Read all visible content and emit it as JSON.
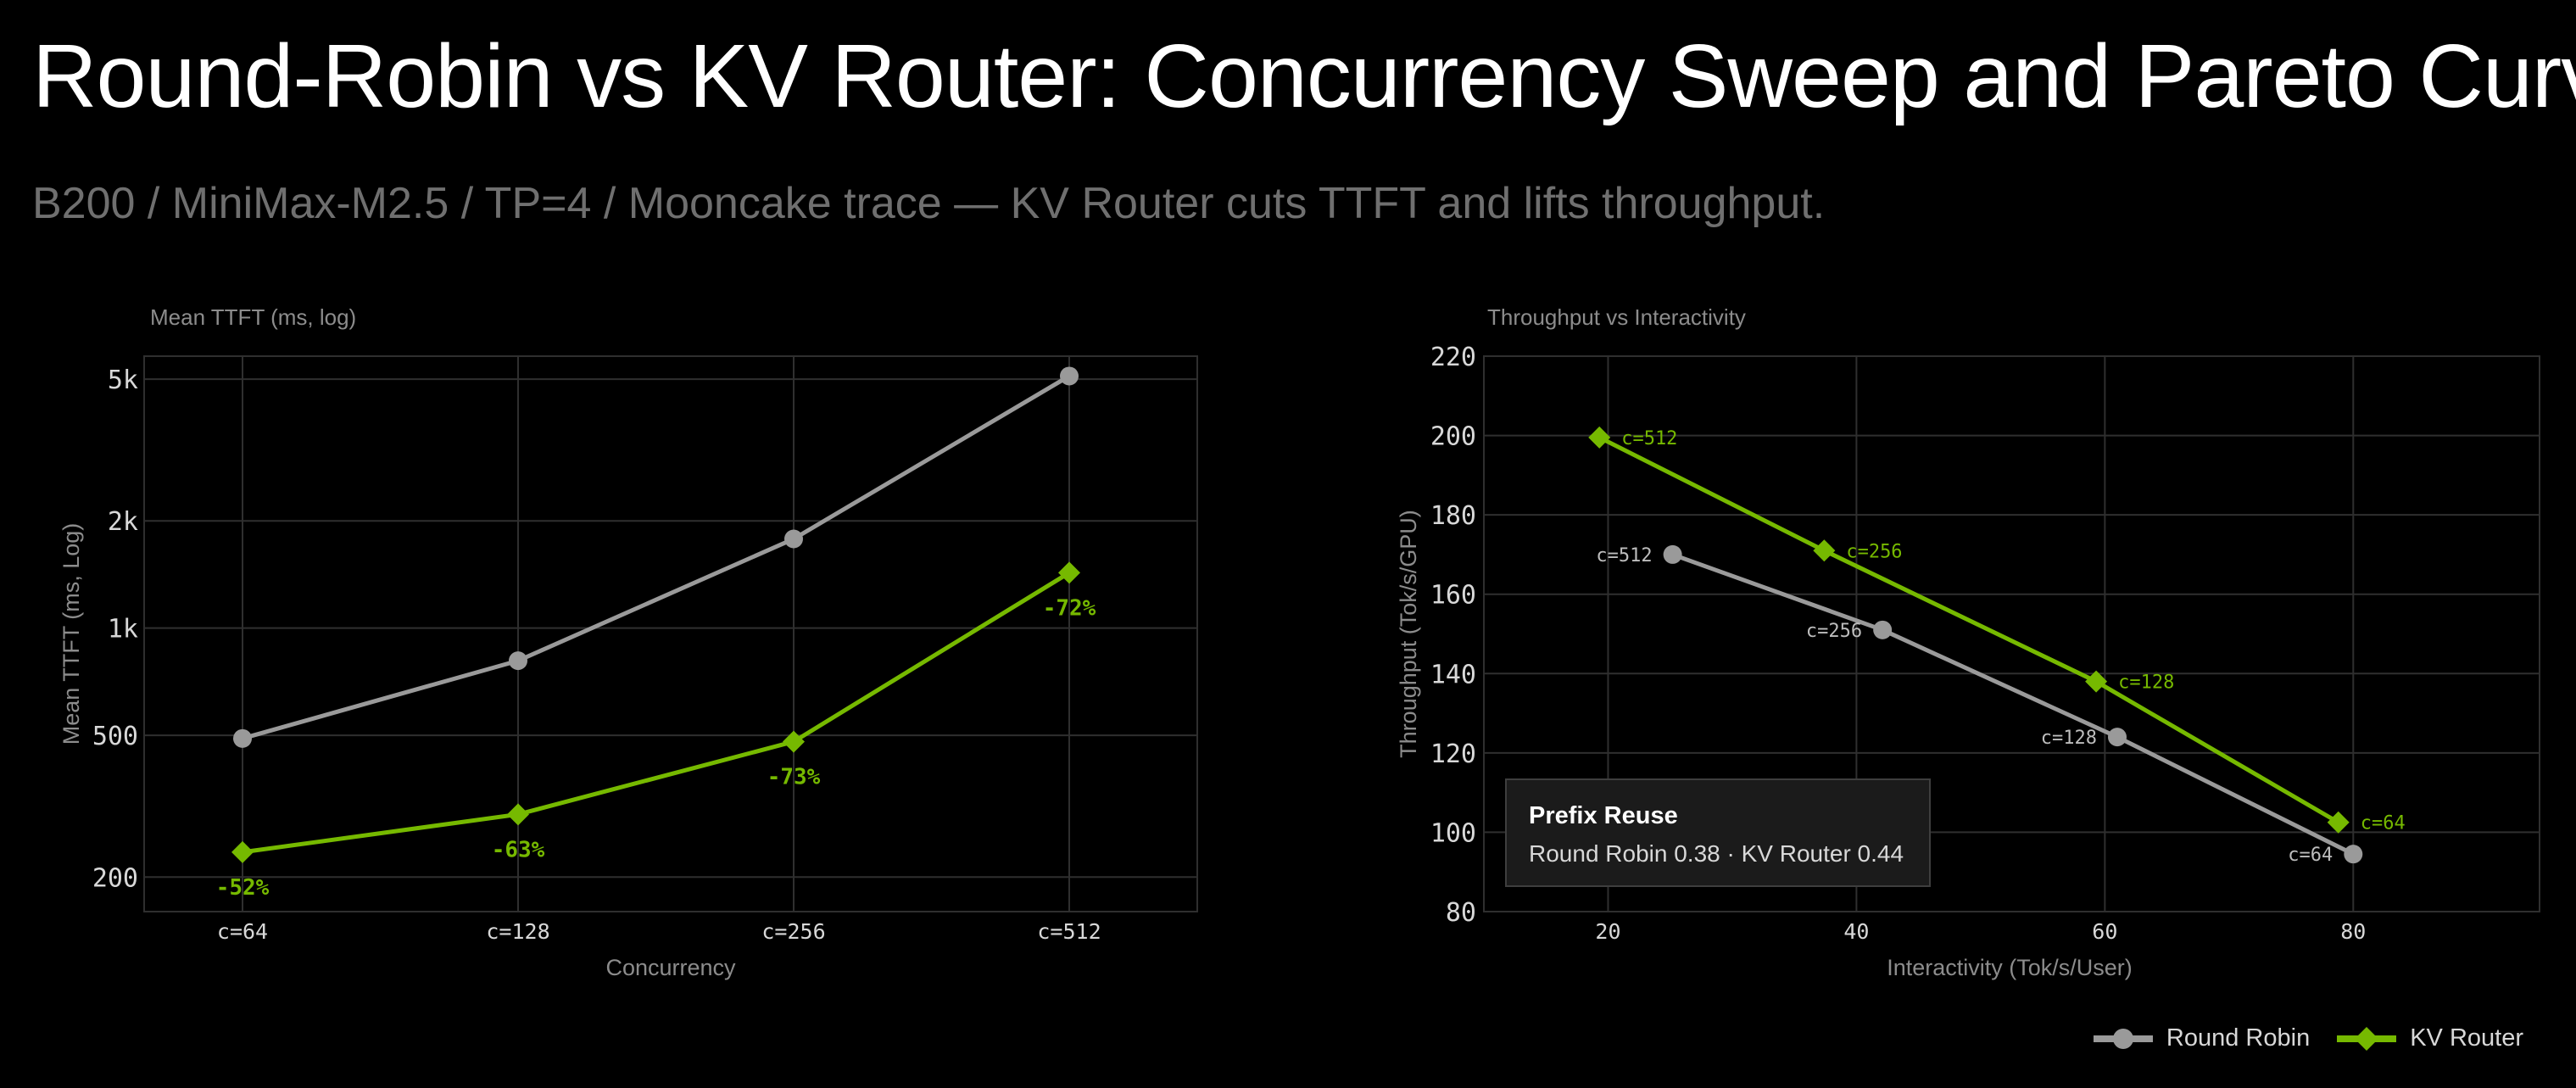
{
  "title": "Round-Robin vs KV Router: Concurrency Sweep and Pareto Curve",
  "subtitle": "B200 / MiniMax-M2.5 / TP=4 / Mooncake trace — KV Router cuts TTFT and lifts throughput.",
  "legend": {
    "round_robin": "Round Robin",
    "kv_router": "KV Router"
  },
  "colors": {
    "round_robin": "#9a9a9a",
    "kv_router": "#76b900",
    "grid": "#2f2f2f",
    "axis_text": "#d8d8d8",
    "label_text": "#8c8c8c"
  },
  "annotation": {
    "title": "Prefix Reuse",
    "text": "Round Robin 0.38 · KV Router 0.44"
  },
  "chart_data": [
    {
      "type": "line",
      "title": "Mean TTFT (ms, log)",
      "xlabel": "Concurrency",
      "ylabel": "Mean TTFT (ms, Log)",
      "yscale": "log",
      "ylim": [
        160,
        5800
      ],
      "yticks": [
        200,
        500,
        1000,
        2000,
        5000
      ],
      "ytick_labels": [
        "200",
        "500",
        "1k",
        "2k",
        "5k"
      ],
      "categories": [
        "c=64",
        "c=128",
        "c=256",
        "c=512"
      ],
      "grid": true,
      "series": [
        {
          "name": "Round Robin",
          "marker": "circle",
          "values": [
            490,
            810,
            1780,
            5100
          ]
        },
        {
          "name": "KV Router",
          "marker": "diamond",
          "values": [
            235,
            300,
            480,
            1430
          ]
        }
      ],
      "annotations": [
        "-52%",
        "-63%",
        "-73%",
        "-72%"
      ]
    },
    {
      "type": "scatter",
      "title": "Throughput vs Interactivity",
      "xlabel": "Interactivity (Tok/s/User)",
      "ylabel": "Throughput (Tok/s/GPU)",
      "xlim": [
        10,
        95
      ],
      "ylim": [
        80,
        220
      ],
      "xticks": [
        20,
        40,
        60,
        80
      ],
      "yticks": [
        80,
        100,
        120,
        140,
        160,
        180,
        200,
        220
      ],
      "grid": true,
      "series": [
        {
          "name": "Round Robin",
          "marker": "circle",
          "label_side": "left",
          "points": [
            {
              "label": "c=512",
              "x": 25.2,
              "y": 170
            },
            {
              "label": "c=256",
              "x": 42.1,
              "y": 151
            },
            {
              "label": "c=128",
              "x": 61.0,
              "y": 124
            },
            {
              "label": "c=64",
              "x": 80.0,
              "y": 94.5
            }
          ]
        },
        {
          "name": "KV Router",
          "marker": "diamond",
          "label_side": "right",
          "points": [
            {
              "label": "c=512",
              "x": 19.3,
              "y": 199.5
            },
            {
              "label": "c=256",
              "x": 37.4,
              "y": 171
            },
            {
              "label": "c=128",
              "x": 59.3,
              "y": 138
            },
            {
              "label": "c=64",
              "x": 78.8,
              "y": 102.5
            }
          ]
        }
      ]
    }
  ]
}
